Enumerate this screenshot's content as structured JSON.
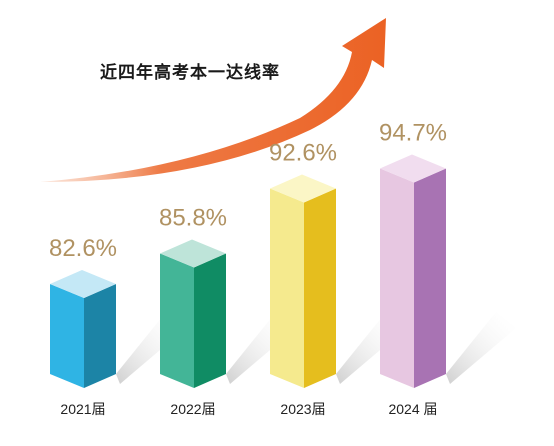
{
  "chart_data": {
    "type": "bar",
    "title": "近四年高考本一达线率",
    "categories": [
      "2021届",
      "2022届",
      "2023届",
      "2024 届"
    ],
    "values": [
      82.6,
      85.8,
      92.6,
      94.7
    ],
    "data_labels": [
      "82.6%",
      "85.8%",
      "92.6%",
      "94.7%"
    ],
    "unit": "%",
    "grid": false,
    "legend": "none",
    "style": "3d-bars",
    "colors": {
      "bars": [
        {
          "front": "#2FB4E4",
          "side": "#1C84A6",
          "top": "#C4E8F6"
        },
        {
          "front": "#43B597",
          "side": "#108C64",
          "top": "#BEE4D9"
        },
        {
          "front": "#F5EA8E",
          "side": "#E5BE1E",
          "top": "#FBF6C6"
        },
        {
          "front": "#E7C7E1",
          "side": "#A873B3",
          "top": "#F1DDEF"
        }
      ],
      "value_label": "#B09262",
      "arrow": "#EB6224",
      "shadow": "#D9D9D9"
    }
  }
}
